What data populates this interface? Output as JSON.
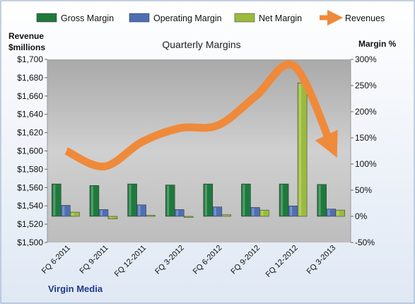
{
  "chart_data": {
    "type": "bar",
    "title": "Quarterly Margins",
    "footer": "Virgin Media",
    "left_axis": {
      "label_line1": "Revenue",
      "label_line2": "$millions",
      "range": [
        1500,
        1700
      ],
      "ticks": [
        "$1,500",
        "$1,520",
        "$1,540",
        "$1,560",
        "$1,580",
        "$1,600",
        "$1,620",
        "$1,640",
        "$1,660",
        "$1,680",
        "$1,700"
      ]
    },
    "right_axis": {
      "label": "Margin %",
      "range": [
        -50,
        300
      ],
      "ticks": [
        "-50%",
        "0%",
        "50%",
        "100%",
        "150%",
        "200%",
        "250%",
        "300%"
      ]
    },
    "categories": [
      "FQ 6-2011",
      "FQ 9-2011",
      "FQ 12-2011",
      "FQ 3-2012",
      "FQ 6-2012",
      "FQ 9-2012",
      "FQ 12-2012",
      "FQ 3-2013"
    ],
    "series": [
      {
        "name": "Gross Margin",
        "axis": "right",
        "kind": "bar",
        "color": "#1e7a3c",
        "values": [
          62,
          59,
          62,
          60,
          62,
          62,
          62,
          61
        ]
      },
      {
        "name": "Operating Margin",
        "axis": "right",
        "kind": "bar",
        "color": "#4f6fb5",
        "values": [
          21,
          13,
          22,
          13,
          18,
          17,
          20,
          14
        ]
      },
      {
        "name": "Net Margin",
        "axis": "right",
        "kind": "bar",
        "color": "#9bbb3c",
        "values": [
          8,
          -5,
          2,
          -1,
          3,
          12,
          255,
          12
        ]
      },
      {
        "name": "Revenues",
        "axis": "left",
        "kind": "line",
        "color": "#ef8a3a",
        "values": [
          1600,
          1583,
          1610,
          1625,
          1628,
          1660,
          1693,
          1605
        ]
      }
    ],
    "legend": "top",
    "grid": false
  }
}
